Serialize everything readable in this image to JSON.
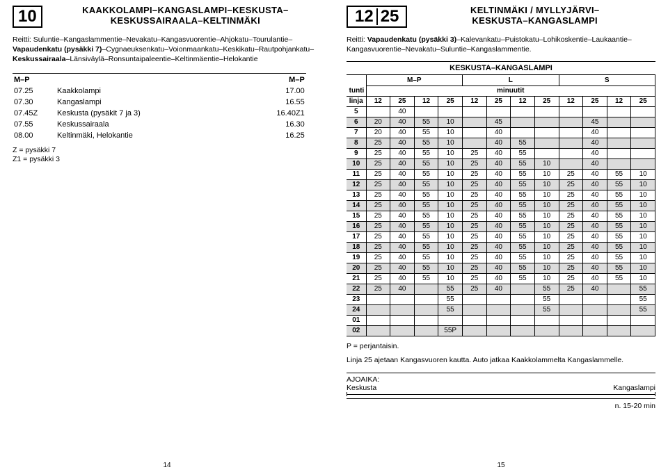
{
  "left": {
    "route_num": "10",
    "title_l1": "KAAKKOLAMPI–KANGASLAMPI–KESKUSTA–",
    "title_l2": "KESKUSSAIRAALA–KELTINMÄKI",
    "route_text": "Reitti: Suluntie–Kangaslammentie–Nevakatu–Kangasvuorentie–Ahjokatu–Tourulantie–Vapaudenkatu (pysäkki 7)–Cygnaeuksenkatu–Voionmaankatu–Keskikatu–Rautpohjankatu–Keskussairaala–Länsiväylä–Ronsuntaipaleentie–Keltinmäentie–Helokantie",
    "hdr_left": "M–P",
    "hdr_right": "M–P",
    "rows": [
      {
        "t1": "07.25",
        "name": "Kaakkolampi",
        "t2": "17.00"
      },
      {
        "t1": "07.30",
        "name": "Kangaslampi",
        "t2": "16.55"
      },
      {
        "t1": "07.45Z",
        "name": "Keskusta (pysäkit 7 ja 3)",
        "t2": "16.40Z1"
      },
      {
        "t1": "07.55",
        "name": "Keskussairaala",
        "t2": "16.30"
      },
      {
        "t1": "08.00",
        "name": "Keltinmäki, Helokantie",
        "t2": "16.25"
      }
    ],
    "legend": [
      "Z  =   pysäkki 7",
      "Z1 =   pysäkki 3"
    ],
    "pagenum": "14"
  },
  "right": {
    "route_nums": [
      "12",
      "25"
    ],
    "title_l1": "KELTINMÄKI / MYLLYJÄRVI–",
    "title_l2": "KESKUSTA–KANGASLAMPI",
    "route_text": "Reitti: Vapaudenkatu (pysäkki 3)–Kalevankatu–Puistokatu–Lohikoskentie–Laukaantie–Kangasvuorentie–Nevakatu–Suluntie–Kangaslammentie.",
    "section_label": "KESKUSTA–KANGASLAMPI",
    "day_headers": [
      "M–P",
      "L",
      "S"
    ],
    "sub_l1": "tunti",
    "sub_l2": "minuutit",
    "line_header": [
      "linja",
      "12",
      "25",
      "12",
      "25",
      "12",
      "25",
      "12",
      "25",
      "12",
      "25",
      "12",
      "25"
    ],
    "rows": [
      {
        "h": "5",
        "c": [
          "",
          "40",
          "",
          "",
          "",
          "",
          "",
          "",
          "",
          "",
          "",
          ""
        ],
        "s": false
      },
      {
        "h": "6",
        "c": [
          "20",
          "40",
          "55",
          "10",
          "",
          "45",
          "",
          "",
          "",
          "45",
          "",
          ""
        ],
        "s": true
      },
      {
        "h": "7",
        "c": [
          "20",
          "40",
          "55",
          "10",
          "",
          "40",
          "",
          "",
          "",
          "40",
          "",
          ""
        ],
        "s": false
      },
      {
        "h": "8",
        "c": [
          "25",
          "40",
          "55",
          "10",
          "",
          "40",
          "55",
          "",
          "",
          "40",
          "",
          ""
        ],
        "s": true
      },
      {
        "h": "9",
        "c": [
          "25",
          "40",
          "55",
          "10",
          "25",
          "40",
          "55",
          "",
          "",
          "40",
          "",
          ""
        ],
        "s": false
      },
      {
        "h": "10",
        "c": [
          "25",
          "40",
          "55",
          "10",
          "25",
          "40",
          "55",
          "10",
          "",
          "40",
          "",
          ""
        ],
        "s": true
      },
      {
        "h": "11",
        "c": [
          "25",
          "40",
          "55",
          "10",
          "25",
          "40",
          "55",
          "10",
          "25",
          "40",
          "55",
          "10"
        ],
        "s": false
      },
      {
        "h": "12",
        "c": [
          "25",
          "40",
          "55",
          "10",
          "25",
          "40",
          "55",
          "10",
          "25",
          "40",
          "55",
          "10"
        ],
        "s": true
      },
      {
        "h": "13",
        "c": [
          "25",
          "40",
          "55",
          "10",
          "25",
          "40",
          "55",
          "10",
          "25",
          "40",
          "55",
          "10"
        ],
        "s": false
      },
      {
        "h": "14",
        "c": [
          "25",
          "40",
          "55",
          "10",
          "25",
          "40",
          "55",
          "10",
          "25",
          "40",
          "55",
          "10"
        ],
        "s": true
      },
      {
        "h": "15",
        "c": [
          "25",
          "40",
          "55",
          "10",
          "25",
          "40",
          "55",
          "10",
          "25",
          "40",
          "55",
          "10"
        ],
        "s": false
      },
      {
        "h": "16",
        "c": [
          "25",
          "40",
          "55",
          "10",
          "25",
          "40",
          "55",
          "10",
          "25",
          "40",
          "55",
          "10"
        ],
        "s": true
      },
      {
        "h": "17",
        "c": [
          "25",
          "40",
          "55",
          "10",
          "25",
          "40",
          "55",
          "10",
          "25",
          "40",
          "55",
          "10"
        ],
        "s": false
      },
      {
        "h": "18",
        "c": [
          "25",
          "40",
          "55",
          "10",
          "25",
          "40",
          "55",
          "10",
          "25",
          "40",
          "55",
          "10"
        ],
        "s": true
      },
      {
        "h": "19",
        "c": [
          "25",
          "40",
          "55",
          "10",
          "25",
          "40",
          "55",
          "10",
          "25",
          "40",
          "55",
          "10"
        ],
        "s": false
      },
      {
        "h": "20",
        "c": [
          "25",
          "40",
          "55",
          "10",
          "25",
          "40",
          "55",
          "10",
          "25",
          "40",
          "55",
          "10"
        ],
        "s": true
      },
      {
        "h": "21",
        "c": [
          "25",
          "40",
          "55",
          "10",
          "25",
          "40",
          "55",
          "10",
          "25",
          "40",
          "55",
          "10"
        ],
        "s": false
      },
      {
        "h": "22",
        "c": [
          "25",
          "40",
          "",
          "55",
          "25",
          "40",
          "",
          "55",
          "25",
          "40",
          "",
          "55"
        ],
        "s": true
      },
      {
        "h": "23",
        "c": [
          "",
          "",
          "",
          "55",
          "",
          "",
          "",
          "55",
          "",
          "",
          "",
          "55"
        ],
        "s": false
      },
      {
        "h": "24",
        "c": [
          "",
          "",
          "",
          "55",
          "",
          "",
          "",
          "55",
          "",
          "",
          "",
          "55"
        ],
        "s": true
      },
      {
        "h": "01",
        "c": [
          "",
          "",
          "",
          "",
          "",
          "",
          "",
          "",
          "",
          "",
          "",
          ""
        ],
        "s": false
      },
      {
        "h": "02",
        "c": [
          "",
          "",
          "",
          "55P",
          "",
          "",
          "",
          "",
          "",
          "",
          "",
          ""
        ],
        "s": true
      }
    ],
    "p_note": "P  =    perjantaisin.",
    "line25_note": "Linja 25 ajetaan Kangasvuoren kautta. Auto jatkaa Kaakkolammelta Kangaslammelle.",
    "ajoaika_label": "AJOAIKA:",
    "ajoaika_from": "Keskusta",
    "ajoaika_to": "Kangaslampi",
    "duration": "n. 15-20 min",
    "pagenum": "15"
  },
  "colors": {
    "shade": "#dcdcdc"
  }
}
